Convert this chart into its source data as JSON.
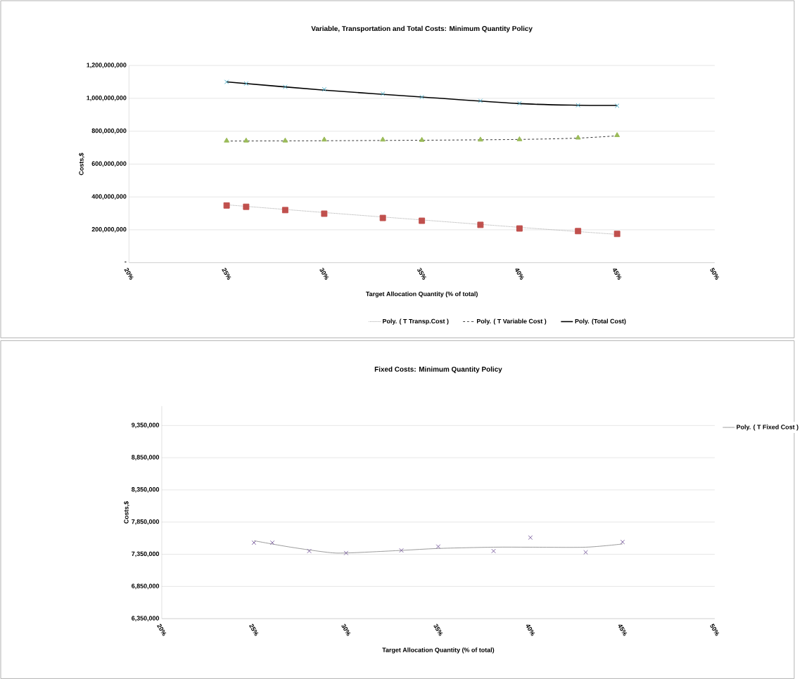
{
  "chart_data": [
    {
      "type": "scatter",
      "title": "Variable, Transportation and Total Costs: Minimum Quantity  Policy",
      "xlabel": "Target Allocation Quantity (% of total)",
      "ylabel": "Costs,$",
      "x": [
        25,
        26,
        28,
        30,
        33,
        35,
        38,
        40,
        43,
        45
      ],
      "xlim": [
        20,
        50
      ],
      "xticks": [
        {
          "value": 20,
          "label": "20%"
        },
        {
          "value": 25,
          "label": "25%"
        },
        {
          "value": 30,
          "label": "30%"
        },
        {
          "value": 35,
          "label": "35%"
        },
        {
          "value": 40,
          "label": "40%"
        },
        {
          "value": 45,
          "label": "45%"
        },
        {
          "value": 50,
          "label": "50%"
        }
      ],
      "ylim": [
        0,
        1200000000
      ],
      "yticks": [
        {
          "value": 0,
          "label": "-"
        },
        {
          "value": 200000000,
          "label": "200,000,000"
        },
        {
          "value": 400000000,
          "label": "400,000,000"
        },
        {
          "value": 600000000,
          "label": "600,000,000"
        },
        {
          "value": 800000000,
          "label": "800,000,000"
        },
        {
          "value": 1000000000,
          "label": "1,000,000,000"
        },
        {
          "value": 1200000000,
          "label": "1,200,000,000"
        }
      ],
      "grid": "y",
      "legend": "bottom",
      "series": [
        {
          "marker": "square",
          "color": "#c0504d",
          "values": [
            348000000,
            340000000,
            320000000,
            298000000,
            272000000,
            255000000,
            230000000,
            208000000,
            192000000,
            175000000
          ]
        },
        {
          "marker": "triangle",
          "color": "#9bbb59",
          "values": [
            742000000,
            742000000,
            742000000,
            748000000,
            748000000,
            746000000,
            748000000,
            750000000,
            760000000,
            775000000
          ]
        },
        {
          "marker": "cross",
          "color": "#4bacc6",
          "values": [
            1100000000,
            1090000000,
            1070000000,
            1055000000,
            1028000000,
            1008000000,
            985000000,
            970000000,
            958000000,
            955000000
          ]
        },
        {
          "type": "line",
          "name": "Poly. ( T Transp.Cost )",
          "line_style": "dotted",
          "color": "#808080",
          "x": [
            25,
            30,
            35,
            40,
            45
          ],
          "values": [
            352000000,
            305000000,
            260000000,
            215000000,
            172000000
          ]
        },
        {
          "type": "line",
          "name": "Poly. ( T Variable Cost )",
          "line_style": "dashed",
          "color": "#000000",
          "x": [
            25,
            30,
            35,
            40,
            43,
            45
          ],
          "values": [
            740000000,
            742000000,
            745000000,
            750000000,
            758000000,
            772000000
          ]
        },
        {
          "type": "line",
          "name": "Poly. (Total Cost)",
          "line_style": "solid",
          "color": "#000000",
          "x": [
            25,
            30,
            35,
            40,
            43,
            45
          ],
          "values": [
            1100000000,
            1050000000,
            1008000000,
            968000000,
            958000000,
            957000000
          ]
        }
      ]
    },
    {
      "type": "scatter",
      "title": "Fixed Costs: Minimum Quantity Policy",
      "xlabel": "Target Allocation Quantity (% of total)",
      "ylabel": "Costs,$",
      "x": [
        25,
        26,
        28,
        30,
        33,
        35,
        38,
        40,
        43,
        45
      ],
      "xlim": [
        20,
        50
      ],
      "xticks": [
        {
          "value": 20,
          "label": "20%"
        },
        {
          "value": 25,
          "label": "25%"
        },
        {
          "value": 30,
          "label": "30%"
        },
        {
          "value": 35,
          "label": "35%"
        },
        {
          "value": 40,
          "label": "40%"
        },
        {
          "value": 45,
          "label": "45%"
        },
        {
          "value": 50,
          "label": "50%"
        }
      ],
      "ylim": [
        6350000,
        9650000
      ],
      "yticks": [
        {
          "value": 6350000,
          "label": "6,350,000"
        },
        {
          "value": 6850000,
          "label": "6,850,000"
        },
        {
          "value": 7350000,
          "label": "7,350,000"
        },
        {
          "value": 7850000,
          "label": "7,850,000"
        },
        {
          "value": 8350000,
          "label": "8,350,000"
        },
        {
          "value": 8850000,
          "label": "8,850,000"
        },
        {
          "value": 9350000,
          "label": "9,350,000"
        }
      ],
      "grid": "y",
      "legend": "right",
      "series": [
        {
          "marker": "cross",
          "color": "#8064a2",
          "values": [
            7530000,
            7530000,
            7400000,
            7370000,
            7410000,
            7470000,
            7400000,
            7610000,
            7380000,
            7540000
          ]
        },
        {
          "type": "line",
          "name": "Poly. ( T Fixed Cost )",
          "line_style": "solid",
          "color": "#808080",
          "x": [
            25,
            27,
            29,
            30,
            33,
            35,
            38,
            40,
            43,
            45
          ],
          "values": [
            7560000,
            7460000,
            7380000,
            7370000,
            7410000,
            7440000,
            7460000,
            7460000,
            7460000,
            7510000
          ]
        }
      ]
    }
  ]
}
